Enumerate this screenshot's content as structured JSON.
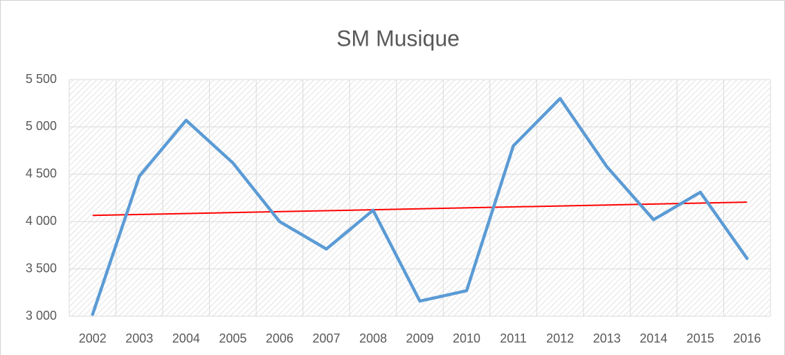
{
  "chart_data": {
    "type": "line",
    "title": "SM Musique",
    "categories": [
      "2002",
      "2003",
      "2004",
      "2005",
      "2006",
      "2007",
      "2008",
      "2009",
      "2010",
      "2011",
      "2012",
      "2013",
      "2014",
      "2015",
      "2016"
    ],
    "series": [
      {
        "name": "SM Musique",
        "color": "#5b9bd5",
        "values": [
          3020,
          4480,
          5070,
          4620,
          4000,
          3710,
          4120,
          3160,
          3270,
          4800,
          5300,
          4580,
          4020,
          4310,
          3610
        ]
      }
    ],
    "trendline": {
      "color": "#ff0000",
      "values": [
        4065,
        4205
      ]
    },
    "ylim": [
      3000,
      5500
    ],
    "yticks": [
      {
        "value": 3000,
        "label": "3 000"
      },
      {
        "value": 3500,
        "label": "3 500"
      },
      {
        "value": 4000,
        "label": "4 000"
      },
      {
        "value": 4500,
        "label": "4 500"
      },
      {
        "value": 5000,
        "label": "5 000"
      },
      {
        "value": 5500,
        "label": "5 500"
      }
    ],
    "grid": true
  }
}
